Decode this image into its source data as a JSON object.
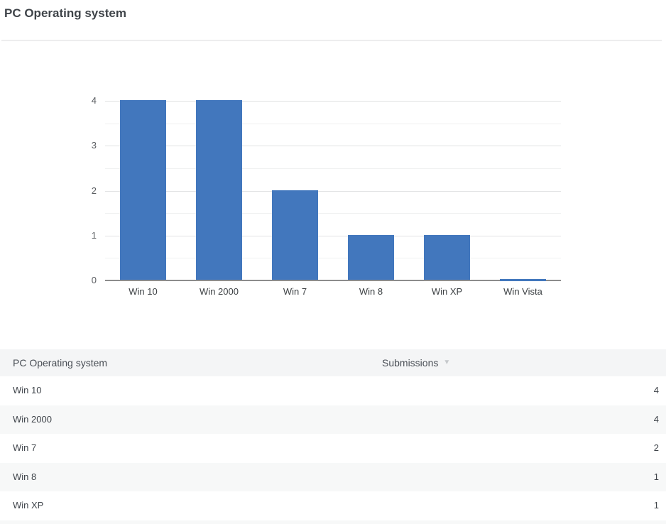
{
  "page": {
    "title": "PC Operating system"
  },
  "chart_data": {
    "type": "bar",
    "title": "PC Operating system",
    "categories": [
      "Win 10",
      "Win 2000",
      "Win 7",
      "Win 8",
      "Win XP",
      "Win Vista"
    ],
    "values": [
      4,
      4,
      2,
      1,
      1,
      0
    ],
    "xlabel": "",
    "ylabel": "",
    "ylim": [
      0,
      4
    ],
    "yticks": [
      0,
      1,
      2,
      3,
      4
    ],
    "grid": true,
    "gridline_step": 0.5,
    "legend_position": "none",
    "bar_color": "#4277bd"
  },
  "table": {
    "header": {
      "label_column": "PC Operating system",
      "value_column": "Submissions",
      "sort_indicator": "▼"
    },
    "rows": [
      {
        "label": "Win 10",
        "value": "4"
      },
      {
        "label": "Win 2000",
        "value": "4"
      },
      {
        "label": "Win 7",
        "value": "2"
      },
      {
        "label": "Win 8",
        "value": "1"
      },
      {
        "label": "Win XP",
        "value": "1"
      }
    ]
  },
  "colors": {
    "bar": "#4277bd",
    "axis": "#8c8c8c",
    "grid_major": "#e1e2e3",
    "grid_minor": "#f0f1f1",
    "header_bg": "#f4f5f6",
    "stripe_bg": "#f7f8f8",
    "title_text": "#3f4449"
  }
}
